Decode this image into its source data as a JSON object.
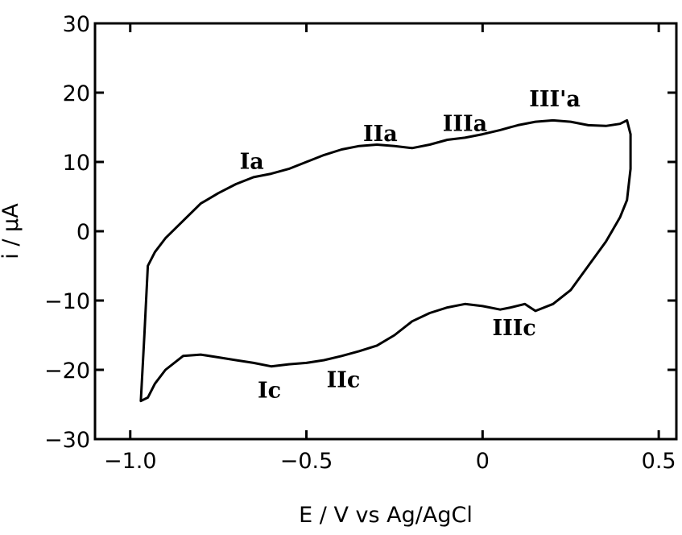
{
  "chart_data": {
    "type": "line",
    "title": "",
    "xlabel": "E / V vs Ag/AgCl",
    "ylabel": "i / μA",
    "xlim": [
      -1.1,
      0.55
    ],
    "ylim": [
      -30,
      30
    ],
    "x_ticks": [
      {
        "value": -1.0,
        "label": "−1.0"
      },
      {
        "value": -0.5,
        "label": "−0.5"
      },
      {
        "value": 0,
        "label": "0"
      },
      {
        "value": 0.5,
        "label": "0.5"
      }
    ],
    "y_ticks": [
      {
        "value": 30,
        "label": "30"
      },
      {
        "value": 20,
        "label": "20"
      },
      {
        "value": 10,
        "label": "10"
      },
      {
        "value": 0,
        "label": "0"
      },
      {
        "value": -10,
        "label": "−10"
      },
      {
        "value": -20,
        "label": "−20"
      },
      {
        "value": -30,
        "label": "−30"
      }
    ],
    "grid": false,
    "series": [
      {
        "x": [
          -0.97,
          -0.96,
          -0.95,
          -0.93,
          -0.9,
          -0.85,
          -0.8,
          -0.75,
          -0.7,
          -0.65,
          -0.6,
          -0.55,
          -0.5,
          -0.45,
          -0.4,
          -0.35,
          -0.3,
          -0.25,
          -0.2,
          -0.15,
          -0.1,
          -0.05,
          0.0,
          0.05,
          0.1,
          0.15,
          0.2,
          0.25,
          0.3,
          0.35,
          0.39,
          0.41,
          0.42,
          0.42,
          0.41,
          0.39,
          0.35,
          0.3,
          0.25,
          0.2,
          0.15,
          0.12,
          0.08,
          0.05,
          0.0,
          -0.05,
          -0.1,
          -0.15,
          -0.2,
          -0.25,
          -0.3,
          -0.35,
          -0.4,
          -0.45,
          -0.5,
          -0.55,
          -0.6,
          -0.65,
          -0.7,
          -0.75,
          -0.8,
          -0.85,
          -0.9,
          -0.93,
          -0.95,
          -0.97
        ],
        "y": [
          -24.5,
          -15,
          -5,
          -3,
          -1,
          1.5,
          4,
          5.5,
          6.8,
          7.8,
          8.3,
          9,
          10,
          11,
          11.8,
          12.3,
          12.5,
          12.3,
          12,
          12.5,
          13.2,
          13.5,
          14,
          14.6,
          15.3,
          15.8,
          16,
          15.8,
          15.3,
          15.2,
          15.5,
          16,
          14,
          9,
          4.5,
          2,
          -1.5,
          -5,
          -8.5,
          -10.5,
          -11.5,
          -10.5,
          -11,
          -11.3,
          -10.8,
          -10.5,
          -11,
          -11.8,
          -13,
          -15,
          -16.5,
          -17.3,
          -18,
          -18.6,
          -19,
          -19.2,
          -19.5,
          -19,
          -18.6,
          -18.2,
          -17.8,
          -18,
          -20,
          -22,
          -24,
          -24.5
        ]
      }
    ],
    "annotations": [
      {
        "text": "Ia",
        "x": -0.655,
        "y": 9.0
      },
      {
        "text": "IIa",
        "x": -0.29,
        "y": 13.0
      },
      {
        "text": "IIIa",
        "x": -0.05,
        "y": 14.5
      },
      {
        "text": "III'a",
        "x": 0.205,
        "y": 18.0
      },
      {
        "text": "Ic",
        "x": -0.605,
        "y": -24.0
      },
      {
        "text": "IIc",
        "x": -0.395,
        "y": -22.5
      },
      {
        "text": "IIIc",
        "x": 0.09,
        "y": -15.0
      }
    ]
  }
}
